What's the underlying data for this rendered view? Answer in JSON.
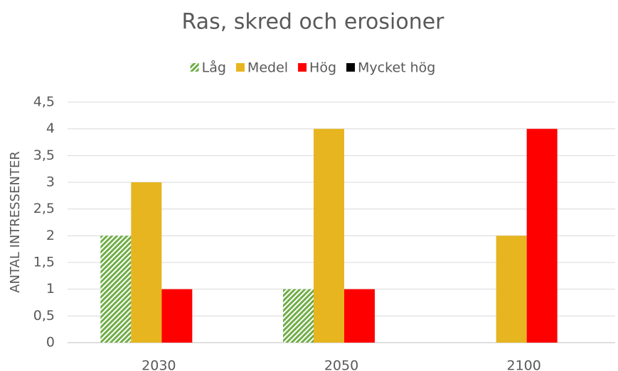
{
  "chart_data": {
    "type": "bar",
    "title": "Ras, skred och erosioner",
    "ylabel": "ANTAL INTRESSENTER",
    "categories": [
      "2030",
      "2050",
      "2100"
    ],
    "series": [
      {
        "name": "Låg",
        "color": "#70ad47",
        "pattern": "hatch",
        "values": [
          2,
          1,
          0
        ]
      },
      {
        "name": "Medel",
        "color": "#e6b520",
        "values": [
          3,
          4,
          2
        ]
      },
      {
        "name": "Hög",
        "color": "#ff0000",
        "values": [
          1,
          1,
          4
        ]
      },
      {
        "name": "Mycket hög",
        "color": "#000000",
        "values": [
          0,
          0,
          0
        ]
      }
    ],
    "ylim": [
      0,
      4.5
    ],
    "yticks": [
      0,
      {
        "value": 0.5,
        "label": "0,5"
      },
      1,
      {
        "value": 1.5,
        "label": "1,5"
      },
      2,
      {
        "value": 2.5,
        "label": "2,5"
      },
      3,
      {
        "value": 3.5,
        "label": "3,5"
      },
      4,
      {
        "value": 4.5,
        "label": "4,5"
      }
    ],
    "grid": true,
    "legend": "top"
  }
}
